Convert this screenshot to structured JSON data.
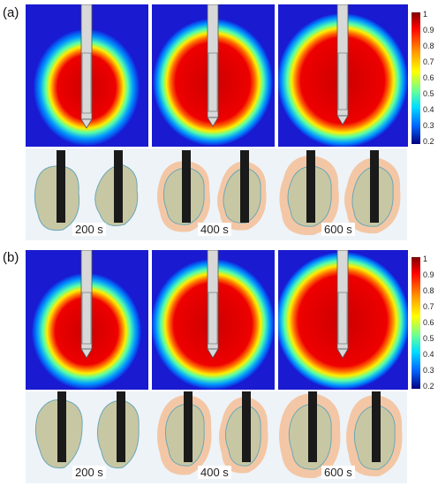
{
  "figure": {
    "panel_a_label": "(a)",
    "panel_b_label": "(b)",
    "time_labels": [
      "200 s",
      "400 s",
      "600 s"
    ],
    "colorbar_ticks": [
      "1",
      "0.9",
      "0.8",
      "0.7",
      "0.6",
      "0.5",
      "0.4",
      "0.3",
      "0.2"
    ],
    "colormap": [
      "#00007f",
      "#0000ff",
      "#007fff",
      "#00ffff",
      "#7fff7f",
      "#ffff00",
      "#ff7f00",
      "#ff0000",
      "#7f0000"
    ]
  }
}
